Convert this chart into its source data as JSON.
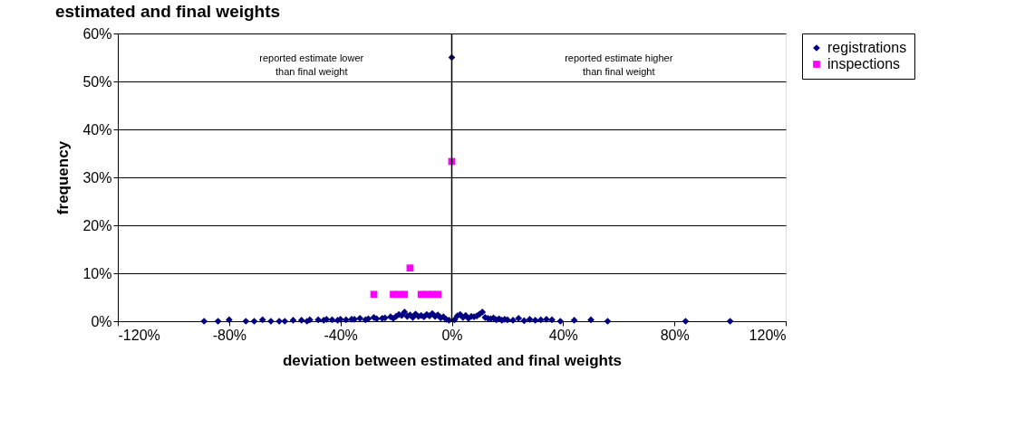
{
  "chart_data": {
    "type": "scatter",
    "title": "estimated and final weights",
    "xlabel": "deviation between estimated and final weights",
    "ylabel": "frequency",
    "xlim": [
      -120,
      120
    ],
    "ylim": [
      0,
      60
    ],
    "xticks": [
      {
        "value": -120,
        "label": "-120%"
      },
      {
        "value": -80,
        "label": "-80%"
      },
      {
        "value": -40,
        "label": "-40%"
      },
      {
        "value": 0,
        "label": "0%"
      },
      {
        "value": 40,
        "label": "40%"
      },
      {
        "value": 80,
        "label": "80%"
      },
      {
        "value": 120,
        "label": "120%"
      }
    ],
    "yticks": [
      {
        "value": 0,
        "label": "0%"
      },
      {
        "value": 10,
        "label": "10%"
      },
      {
        "value": 20,
        "label": "20%"
      },
      {
        "value": 30,
        "label": "30%"
      },
      {
        "value": 40,
        "label": "40%"
      },
      {
        "value": 50,
        "label": "50%"
      },
      {
        "value": 60,
        "label": "60%"
      }
    ],
    "grid": "y",
    "legend": "right",
    "ref_lines": [
      {
        "axis": "x",
        "value": 0,
        "color": "#000000"
      }
    ],
    "annotations": [
      "reported estimate lower\nthan final weight",
      "reported estimate higher\nthan final weight"
    ],
    "series": [
      {
        "name": "registrations",
        "color": "#000080",
        "marker": "diamond",
        "x": [
          -89,
          -84,
          -80,
          -74,
          -71,
          -68,
          -65,
          -62,
          -60,
          -57,
          -54,
          -52,
          -51,
          -48,
          -46,
          -45,
          -43,
          -41,
          -40,
          -38,
          -36,
          -35,
          -33,
          -31,
          -30,
          -28,
          -27,
          -25,
          -24,
          -22,
          -21,
          -20,
          -19,
          -18,
          -17,
          -16,
          -15,
          -14,
          -13,
          -12,
          -11,
          -10,
          -9,
          -8,
          -7,
          -6,
          -5,
          -4,
          -3,
          -2,
          -1,
          0,
          1,
          2,
          3,
          4,
          5,
          6,
          7,
          8,
          9,
          10,
          11,
          12,
          13,
          14,
          15,
          16,
          17,
          18,
          19,
          20,
          22,
          24,
          26,
          28,
          30,
          32,
          34,
          36,
          39,
          44,
          50,
          56,
          84,
          100
        ],
        "values": [
          0,
          0,
          0.3,
          0,
          0,
          0.3,
          0,
          0,
          0,
          0.2,
          0.2,
          0,
          0.3,
          0.3,
          0.2,
          0.4,
          0.3,
          0.2,
          0.4,
          0.3,
          0.4,
          0.4,
          0.6,
          0.3,
          0.5,
          0.8,
          0.5,
          0.6,
          0.7,
          0.9,
          0.6,
          1.0,
          1.4,
          1.2,
          1.9,
          1.0,
          1.3,
          0.8,
          1.5,
          1.0,
          1.2,
          0.9,
          1.4,
          1.1,
          1.6,
          1.0,
          1.3,
          0.7,
          0.9,
          0.4,
          0.2,
          55,
          0.3,
          1.1,
          1.4,
          0.8,
          1.2,
          0.6,
          1.0,
          0.9,
          1.1,
          1.5,
          1.9,
          0.8,
          0.6,
          0.5,
          0.7,
          0.3,
          0.5,
          0.2,
          0.4,
          0.3,
          0.2,
          0.6,
          0.1,
          0.4,
          0.2,
          0.3,
          0.4,
          0.3,
          0,
          0.2,
          0.3,
          0,
          0,
          0
        ]
      },
      {
        "name": "inspections",
        "color": "#ff00ff",
        "marker": "square",
        "x": [
          -28,
          -21,
          -19,
          -17,
          -15,
          -11,
          -9,
          -7,
          -5,
          0
        ],
        "values": [
          5.6,
          5.6,
          5.6,
          5.6,
          11.1,
          5.6,
          5.6,
          5.6,
          5.6,
          33.3
        ]
      }
    ]
  }
}
